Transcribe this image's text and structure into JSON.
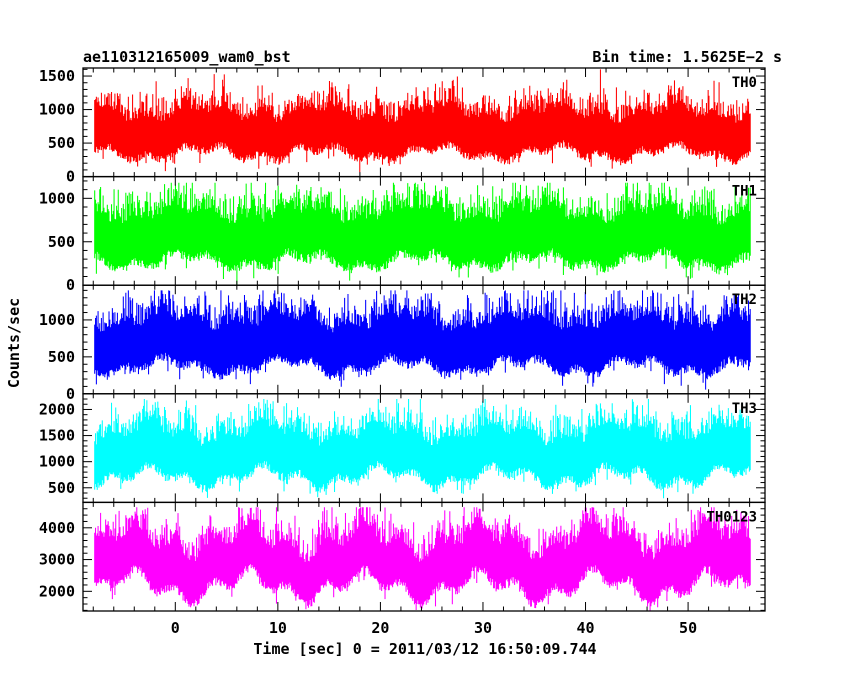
{
  "chart_data": {
    "type": "line",
    "title": "ae110312165009_wam0_bst",
    "subtitle": "Bin time: 1.5625E−2 s",
    "xlabel": "Time [sec] 0 = 2011/03/12 16:50:09.744",
    "ylabel": "Counts/sec",
    "xlim": [
      -9,
      57.5
    ],
    "x_ticks": [
      0,
      10,
      20,
      30,
      40,
      50
    ],
    "x_tick_labels": [
      "0",
      "10",
      "20",
      "30",
      "40",
      "50"
    ],
    "data_x_range": [
      -7.9,
      56.1
    ],
    "grid": false,
    "legend": "none",
    "panels": [
      {
        "name": "TH0",
        "color": "#ff0000",
        "ylim": [
          0,
          1620
        ],
        "y_ticks": [
          0,
          500,
          1000,
          1500
        ],
        "y_tick_labels": [
          "0",
          "500",
          "1000",
          "1500"
        ],
        "mean": 690,
        "spread": 330,
        "floor": 200,
        "peak": 1620
      },
      {
        "name": "TH1",
        "color": "#00ff00",
        "ylim": [
          0,
          1250
        ],
        "y_ticks": [
          0,
          500,
          1000
        ],
        "y_tick_labels": [
          "0",
          "500",
          "1000"
        ],
        "mean": 590,
        "spread": 300,
        "floor": 50,
        "peak": 1180
      },
      {
        "name": "TH2",
        "color": "#0000ff",
        "ylim": [
          0,
          1470
        ],
        "y_ticks": [
          0,
          500,
          1000
        ],
        "y_tick_labels": [
          "0",
          "500",
          "1000"
        ],
        "mean": 720,
        "spread": 340,
        "floor": 120,
        "peak": 1400
      },
      {
        "name": "TH3",
        "color": "#00ffff",
        "ylim": [
          220,
          2300
        ],
        "y_ticks": [
          500,
          1000,
          1500,
          2000
        ],
        "y_tick_labels": [
          "500",
          "1000",
          "1500",
          "2000"
        ],
        "mean": 1180,
        "spread": 460,
        "floor": 400,
        "peak": 2200
      },
      {
        "name": "TH0123",
        "color": "#ff00ff",
        "ylim": [
          1380,
          4800
        ],
        "y_ticks": [
          2000,
          3000,
          4000
        ],
        "y_tick_labels": [
          "2000",
          "3000",
          "4000"
        ],
        "mean": 2950,
        "spread": 780,
        "floor": 1500,
        "peak": 4650
      }
    ]
  }
}
